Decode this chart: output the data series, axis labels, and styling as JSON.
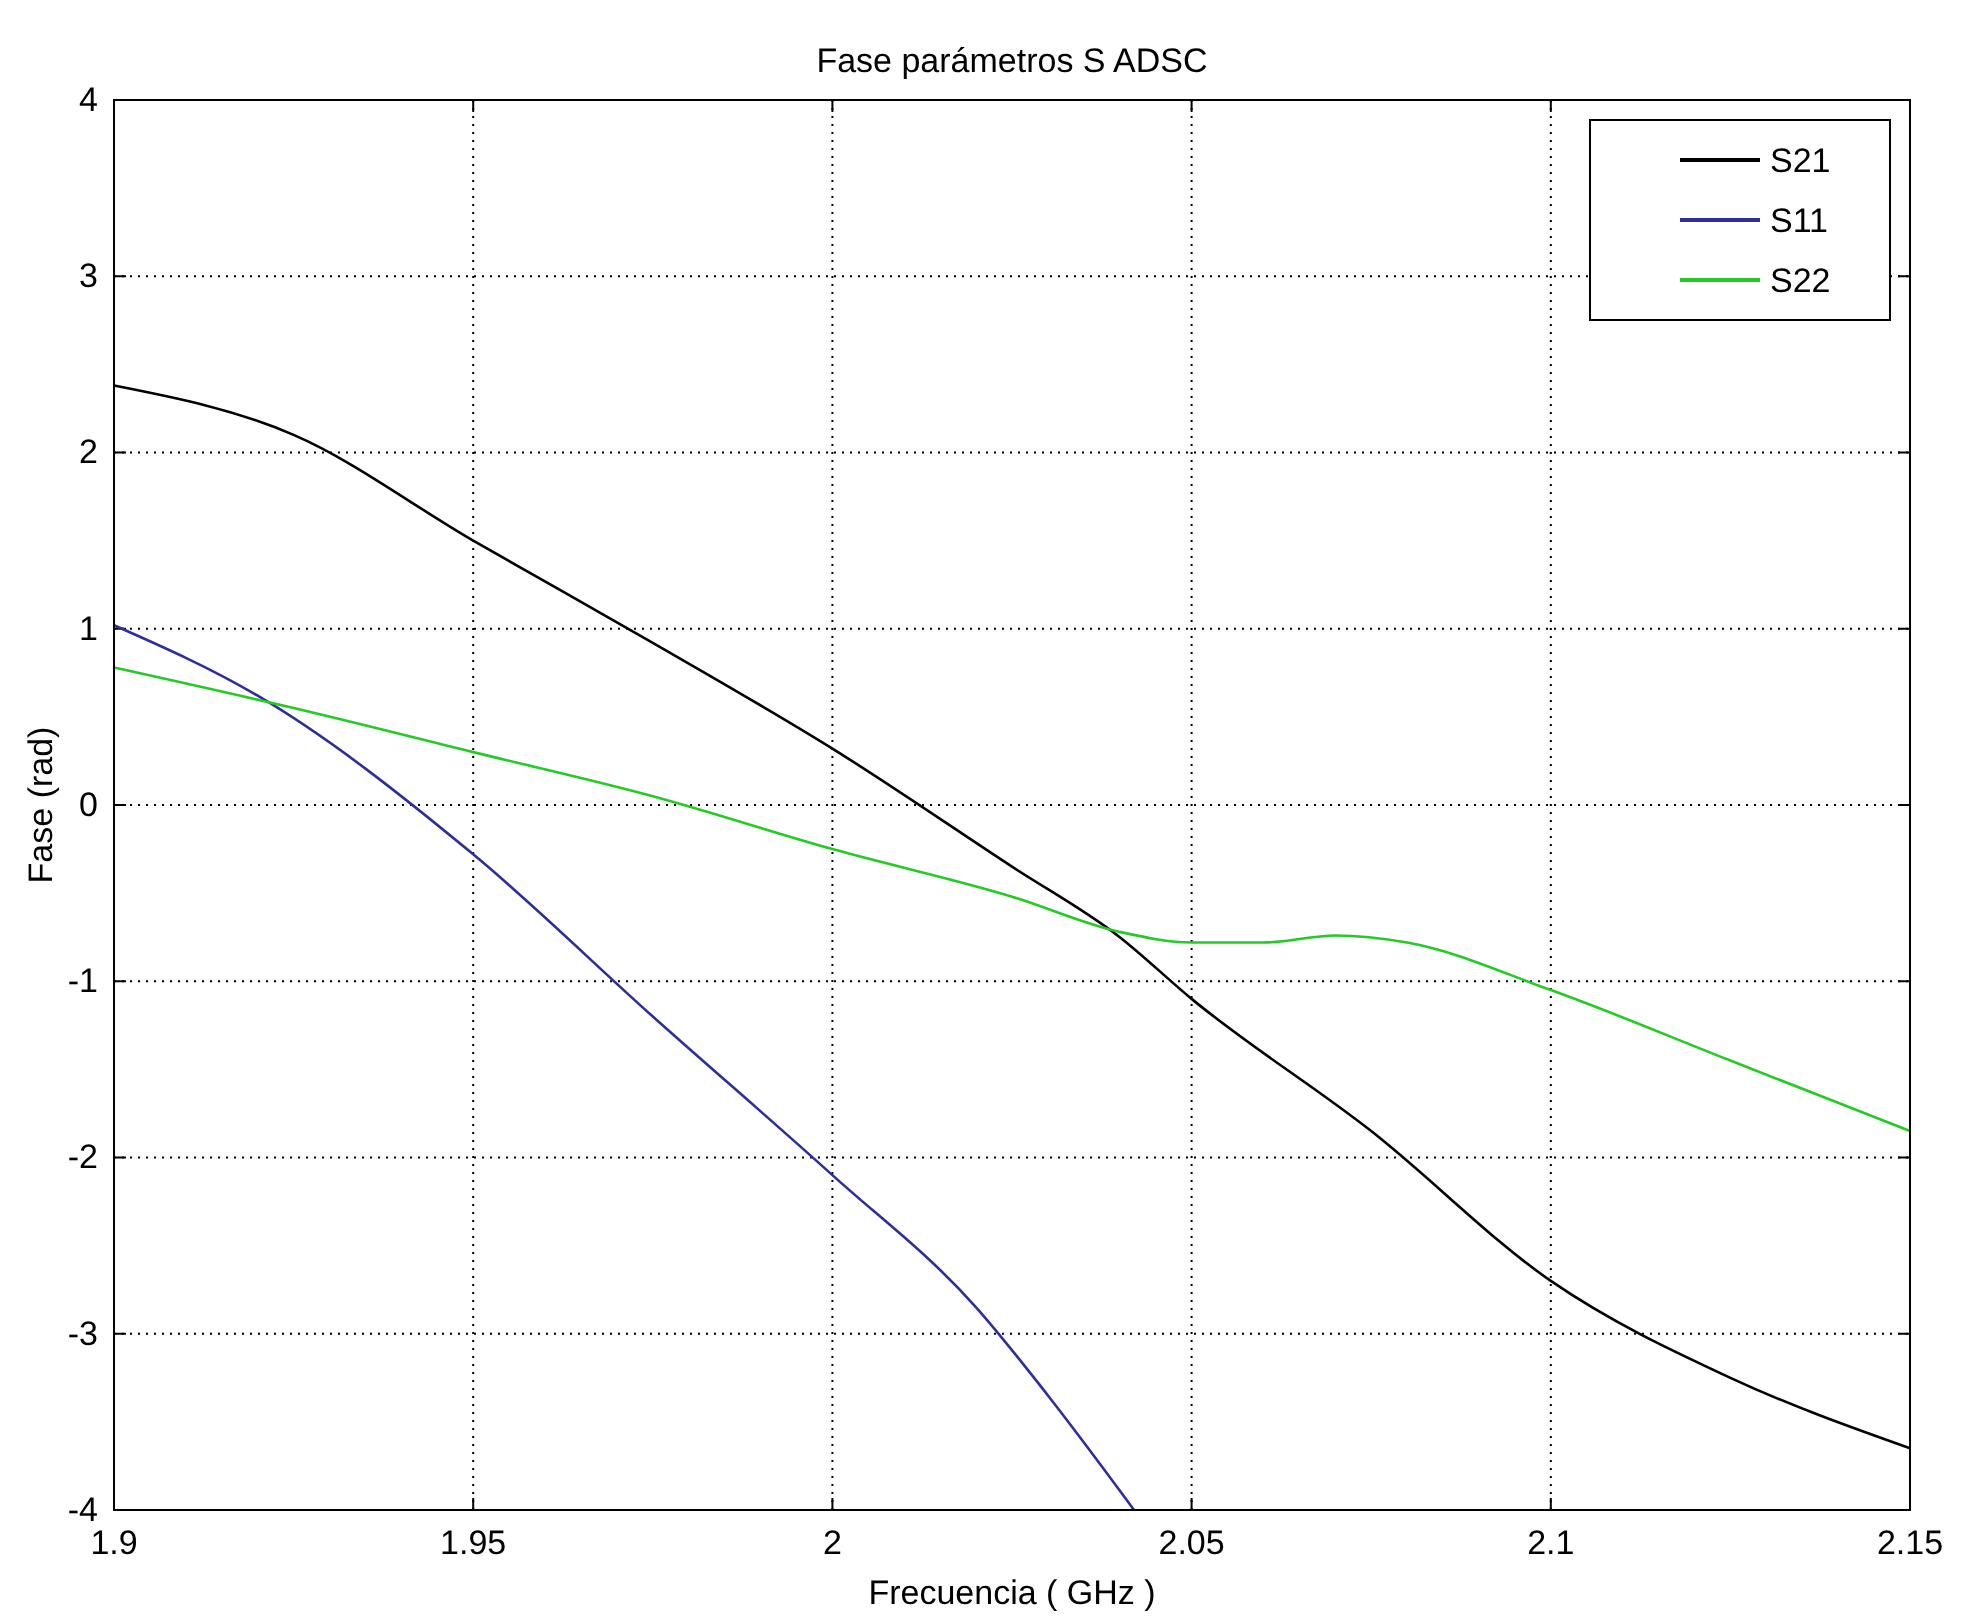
{
  "chart_data": {
    "type": "line",
    "title": "Fase parámetros S ADSC",
    "xlabel": "Frecuencia ( GHz )",
    "ylabel": "Fase (rad)",
    "xlim": [
      1.9,
      2.15
    ],
    "xticks": [
      1.9,
      1.95,
      2,
      2.05,
      2.1,
      2.15
    ],
    "ylim": [
      -4,
      4
    ],
    "yticks": [
      -4,
      -3,
      -2,
      -1,
      0,
      1,
      2,
      3,
      4
    ],
    "grid": true,
    "legend": "top right",
    "line_style": "solid",
    "marker": "none",
    "series": [
      {
        "name": "S21",
        "color": "#000000",
        "x": [
          1.9,
          1.925,
          1.95,
          1.975,
          2.0,
          2.025,
          2.04,
          2.05,
          2.075,
          2.1,
          2.125,
          2.15
        ],
        "values": [
          2.38,
          2.1,
          1.5,
          0.92,
          0.32,
          -0.35,
          -0.75,
          -1.1,
          -1.85,
          -2.7,
          -3.25,
          -3.65
        ]
      },
      {
        "name": "S11",
        "color": "#2e2e9a",
        "x": [
          1.9,
          1.92,
          1.95,
          1.975,
          2.0,
          2.02,
          2.03,
          2.042
        ],
        "values": [
          1.02,
          0.62,
          -0.28,
          -1.2,
          -2.1,
          -2.85,
          -3.35,
          -4.0
        ]
      },
      {
        "name": "S22",
        "color": "#22cc22",
        "x": [
          1.9,
          1.925,
          1.95,
          1.975,
          2.0,
          2.025,
          2.04,
          2.05,
          2.06,
          2.07,
          2.08,
          2.1,
          2.125,
          2.15
        ],
        "values": [
          0.78,
          0.55,
          0.3,
          0.05,
          -0.25,
          -0.52,
          -0.72,
          -0.78,
          -0.78,
          -0.74,
          -0.78,
          -1.05,
          -1.45,
          -1.85
        ]
      }
    ]
  }
}
